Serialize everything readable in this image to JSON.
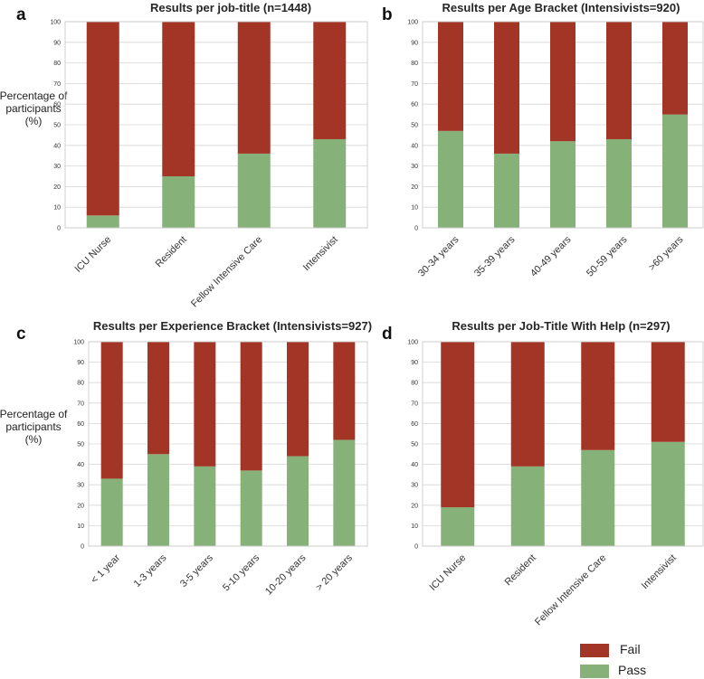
{
  "colors": {
    "fail": "#A33526",
    "pass": "#86B178"
  },
  "legend": {
    "fail_label": "Fail",
    "pass_label": "Pass"
  },
  "y_axis_label": [
    "Percentage of",
    "participants",
    "(%)"
  ],
  "chart_data": [
    {
      "panel": "a",
      "type": "bar",
      "stacked": true,
      "title": "Results per job-title (n=1448)",
      "ylabel": "Percentage of participants (%)",
      "ylim": [
        0,
        100
      ],
      "yticks": [
        0,
        10,
        20,
        30,
        40,
        50,
        60,
        70,
        80,
        90,
        100
      ],
      "categories": [
        "ICU Nurse",
        "Resident",
        "Fellow Intensive Care",
        "Intensivist"
      ],
      "series": [
        {
          "name": "Pass",
          "values": [
            6,
            25,
            36,
            43
          ]
        },
        {
          "name": "Fail",
          "values": [
            94,
            75,
            64,
            57
          ]
        }
      ]
    },
    {
      "panel": "b",
      "type": "bar",
      "stacked": true,
      "title": "Results per Age Bracket (Intensivists=920)",
      "ylabel": "",
      "ylim": [
        0,
        100
      ],
      "yticks": [
        0,
        10,
        20,
        30,
        40,
        50,
        60,
        70,
        80,
        90,
        100
      ],
      "categories": [
        "30-34 years",
        "35-39 years",
        "40-49 years",
        "50-59 years",
        ">60 years"
      ],
      "series": [
        {
          "name": "Pass",
          "values": [
            47,
            36,
            42,
            43,
            55
          ]
        },
        {
          "name": "Fail",
          "values": [
            53,
            64,
            58,
            57,
            45
          ]
        }
      ]
    },
    {
      "panel": "c",
      "type": "bar",
      "stacked": true,
      "title": "Results per Experience Bracket (Intensivists=927)",
      "ylabel": "Percentage of participants (%)",
      "ylim": [
        0,
        100
      ],
      "yticks": [
        0,
        10,
        20,
        30,
        40,
        50,
        60,
        70,
        80,
        90,
        100
      ],
      "categories": [
        "< 1 year",
        "1-3 years",
        "3-5 years",
        "5-10 years",
        "10-20 years",
        "> 20 years"
      ],
      "series": [
        {
          "name": "Pass",
          "values": [
            33,
            45,
            39,
            37,
            44,
            52
          ]
        },
        {
          "name": "Fail",
          "values": [
            67,
            55,
            61,
            63,
            56,
            48
          ]
        }
      ]
    },
    {
      "panel": "d",
      "type": "bar",
      "stacked": true,
      "title": "Results per Job-Title With Help (n=297)",
      "ylabel": "",
      "ylim": [
        0,
        100
      ],
      "yticks": [
        0,
        10,
        20,
        30,
        40,
        50,
        60,
        70,
        80,
        90,
        100
      ],
      "categories": [
        "ICU Nurse",
        "Resident",
        "Fellow Intensive Care",
        "Intensivist"
      ],
      "series": [
        {
          "name": "Pass",
          "values": [
            19,
            39,
            47,
            51
          ]
        },
        {
          "name": "Fail",
          "values": [
            81,
            61,
            53,
            49
          ]
        }
      ]
    }
  ]
}
